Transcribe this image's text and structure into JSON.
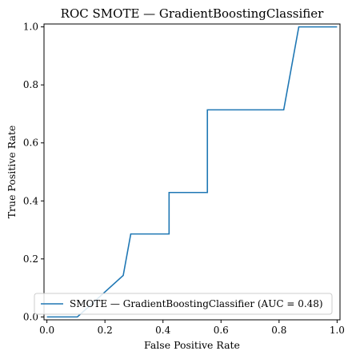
{
  "chart_data": {
    "type": "line",
    "title": "ROC SMOTE — GradientBoostingClassifier",
    "xlabel": "False Positive Rate",
    "ylabel": "True Positive Rate",
    "xlim": [
      -0.01,
      1.01
    ],
    "ylim": [
      -0.01,
      1.01
    ],
    "xticks": [
      0.0,
      0.2,
      0.4,
      0.6,
      0.8,
      1.0
    ],
    "yticks": [
      0.0,
      0.2,
      0.4,
      0.6,
      0.8,
      1.0
    ],
    "xtick_labels": [
      "0.0",
      "0.2",
      "0.4",
      "0.6",
      "0.8",
      "1.0"
    ],
    "ytick_labels": [
      "0.0",
      "0.2",
      "0.4",
      "0.6",
      "0.8",
      "1.0"
    ],
    "grid": false,
    "legend_position": "lower-right",
    "series": [
      {
        "name": "SMOTE — GradientBoostingClassifier (AUC = 0.48)",
        "color": "#1f77b4",
        "x": [
          0.0,
          0.105,
          0.263,
          0.289,
          0.421,
          0.421,
          0.553,
          0.553,
          0.816,
          0.868,
          1.0
        ],
        "y": [
          0.0,
          0.0,
          0.143,
          0.286,
          0.286,
          0.429,
          0.429,
          0.714,
          0.714,
          1.0,
          1.0
        ]
      }
    ]
  }
}
